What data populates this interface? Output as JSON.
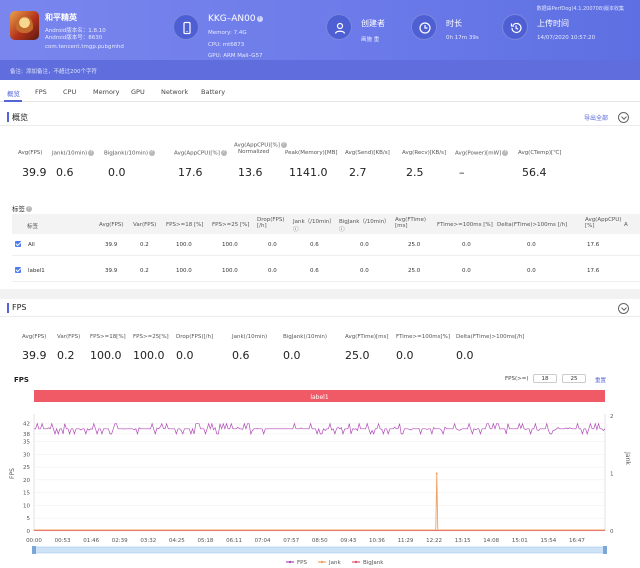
{
  "header": {
    "app_name": "和平精英",
    "app_version": "Android版本名：1.8.10",
    "app_build": "Android版本号：8630",
    "package": "com.tencent.tmgp.pubgmhd",
    "device_model": "KKG–AN00",
    "memory": "Memory: 7.4G",
    "cpu": "CPU: mt6873",
    "gpu": "GPU: ARM Mali–G57",
    "creator_label": "创建者",
    "creator_value": "画施 重",
    "duration_label": "时长",
    "duration_value": "0h 17m 39s",
    "upload_label": "上传时间",
    "upload_value": "14/07/2020 10:57:20",
    "watermark": "数据由PerfDog(4.1.200708)版本收集"
  },
  "note": {
    "label": "备注:",
    "placeholder": "添加备注，不超过200个字符"
  },
  "tabs": [
    "概览",
    "FPS",
    "CPU",
    "Memory",
    "GPU",
    "Network",
    "Battery"
  ],
  "overview": {
    "title": "概览",
    "export_label": "导出全部",
    "metrics": [
      {
        "label": "Avg(FPS)",
        "value": "39.9",
        "help": false
      },
      {
        "label": "Jank(/10min)",
        "value": "0.6",
        "help": true
      },
      {
        "label": "BigJank(/10min)",
        "value": "0.0",
        "help": true
      },
      {
        "label": "Avg(AppCPU)[%]",
        "value": "17.6",
        "help": true
      },
      {
        "label": "Avg(AppCPU)[%]",
        "label2": "Normalized",
        "value": "13.6",
        "help": true
      },
      {
        "label": "Peak(Memory)[MB]",
        "value": "1141.0",
        "help": false
      },
      {
        "label": "Avg(Send)[KB/s]",
        "value": "2.7",
        "help": false
      },
      {
        "label": "Avg(Recv)[KB/s]",
        "value": "2.5",
        "help": false
      },
      {
        "label": "Avg(Power)[mW]",
        "value": "–",
        "help": true
      },
      {
        "label": "Avg(CTemp)[℃]",
        "value": "56.4",
        "help": false
      }
    ]
  },
  "tags": {
    "title": "标签",
    "headers": [
      {
        "l1": "标签"
      },
      {
        "l1": "Avg(FPS)"
      },
      {
        "l1": "Var(FPS)"
      },
      {
        "l1": "FPS>=18 [%]"
      },
      {
        "l1": "FPS>=25 [%]"
      },
      {
        "l1": "Drop(FPS)",
        "l2": "[/h]"
      },
      {
        "l1": "Jank（/10min）",
        "l2": "ⓘ"
      },
      {
        "l1": "BigJank（/10min）",
        "l2": "ⓘ"
      },
      {
        "l1": "Avg(FTime)",
        "l2": "[ms]"
      },
      {
        "l1": "FTime>=100ms [%]"
      },
      {
        "l1": "Delta(FTime)>100ms [/h]"
      },
      {
        "l1": "Avg(AppCPU)",
        "l2": "[%]"
      },
      {
        "l1": "A"
      }
    ],
    "rows": [
      {
        "name": "All",
        "cells": [
          "39.9",
          "0.2",
          "100.0",
          "100.0",
          "0.0",
          "0.6",
          "0.0",
          "25.0",
          "0.0",
          "0.0",
          "17.6"
        ]
      },
      {
        "name": "label1",
        "cells": [
          "39.9",
          "0.2",
          "100.0",
          "100.0",
          "0.0",
          "0.6",
          "0.0",
          "25.0",
          "0.0",
          "0.0",
          "17.6"
        ]
      }
    ]
  },
  "fps_section": {
    "title": "FPS",
    "metrics": [
      {
        "label": "Avg(FPS)",
        "value": "39.9"
      },
      {
        "label": "Var(FPS)",
        "value": "0.2"
      },
      {
        "label": "FPS>=18[%]",
        "value": "100.0"
      },
      {
        "label": "FPS>=25[%]",
        "value": "100.0"
      },
      {
        "label": "Drop(FPS)[/h]",
        "value": "0.0"
      },
      {
        "label": "Jank(/10min)",
        "value": "0.6"
      },
      {
        "label": "BigJank(/10min)",
        "value": "0.0"
      },
      {
        "label": "Avg(FTime)[ms]",
        "value": "25.0"
      },
      {
        "label": "FTime>=100ms[%]",
        "value": "0.0"
      },
      {
        "label": "Delta(FTime)>100ms[/h]",
        "value": "0.0"
      }
    ],
    "chart_title": "FPS",
    "filter_label": "FPS(>=)",
    "filter_low": "18",
    "filter_high": "25",
    "reset_label": "重置"
  },
  "chart_data": {
    "type": "line",
    "title": "FPS",
    "band_label": "label1",
    "ylabel": "FPS",
    "y2label": "Jank",
    "yticks": [
      0,
      5,
      10,
      15,
      20,
      25,
      30,
      35,
      38,
      42
    ],
    "y2ticks": [
      0,
      1,
      2
    ],
    "ylim": [
      0,
      45
    ],
    "y2lim": [
      0,
      2
    ],
    "xticks": [
      "00:00",
      "00:53",
      "01:46",
      "02:39",
      "03:32",
      "04:25",
      "05:18",
      "06:11",
      "07:04",
      "07:57",
      "08:50",
      "09:43",
      "10:36",
      "11:29",
      "12:22",
      "13:15",
      "14:08",
      "15:01",
      "15:54",
      "16:47"
    ],
    "x_range_seconds": [
      0,
      1059
    ],
    "series": [
      {
        "name": "FPS",
        "color": "#b04ab6",
        "values_desc": "approximately 40 throughout",
        "baseline": 40,
        "low": 38,
        "high": 42
      },
      {
        "name": "Jank",
        "color": "#f0a060",
        "spike_time": "12:27",
        "spike_value": 1
      },
      {
        "name": "BigJank",
        "color": "#e0566e",
        "baseline": 0
      }
    ],
    "legend": "bottom"
  },
  "colors": {
    "accent": "#5565d6",
    "band": "#f05a66",
    "fps": "#b04ab6",
    "jank": "#f0a060",
    "bigjank": "#e0566e"
  }
}
